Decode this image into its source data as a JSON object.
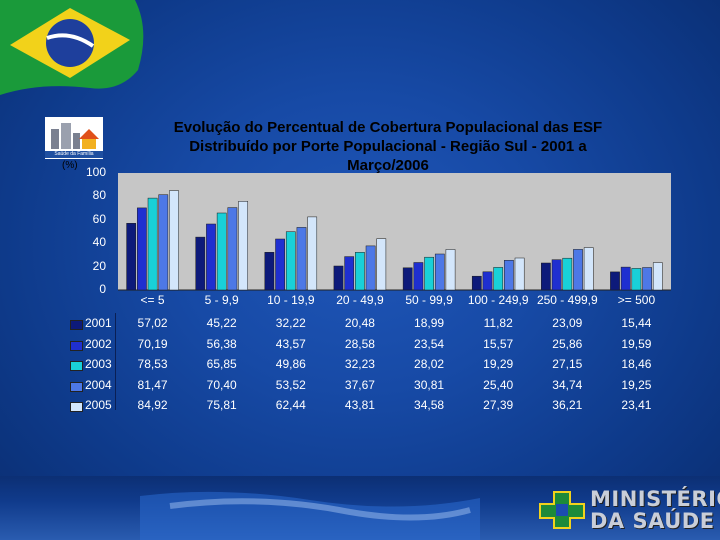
{
  "title_lines": [
    "Evolução do Percentual de Cobertura Populacional das ESF",
    "Distribuído por Porte Populacional - Região Sul - 2001 a",
    "Março/2006"
  ],
  "logo_caption": "Saúde da Família",
  "ministry": {
    "line1": "MINISTÉRIO",
    "line2": "DA SAÚDE"
  },
  "chart_data": {
    "type": "bar",
    "title": "Evolução do Percentual de Cobertura Populacional das ESF Distribuído por Porte Populacional - Região Sul - 2001 a Março/2006",
    "ylabel": "(%)",
    "ylim": [
      0,
      100
    ],
    "yticks": [
      "0",
      "20",
      "40",
      "60",
      "80",
      "100"
    ],
    "grid": false,
    "legend": "table-left",
    "categories": [
      "<= 5",
      "5 - 9,9",
      "10 - 19,9",
      "20 - 49,9",
      "50 - 99,9",
      "100 - 249,9",
      "250 - 499,9",
      ">= 500"
    ],
    "series": [
      {
        "name": "2001",
        "color": "#0d1a7a",
        "values": [
          57.02,
          45.22,
          32.22,
          20.48,
          18.99,
          11.82,
          23.09,
          15.44
        ],
        "labels": [
          "57,02",
          "45,22",
          "32,22",
          "20,48",
          "18,99",
          "11,82",
          "23,09",
          "15,44"
        ]
      },
      {
        "name": "2002",
        "color": "#1f2fd0",
        "values": [
          70.19,
          56.38,
          43.57,
          28.58,
          23.54,
          15.57,
          25.86,
          19.59
        ],
        "labels": [
          "70,19",
          "56,38",
          "43,57",
          "28,58",
          "23,54",
          "15,57",
          "25,86",
          "19,59"
        ]
      },
      {
        "name": "2003",
        "color": "#19d0d8",
        "values": [
          78.53,
          65.85,
          49.86,
          32.23,
          28.02,
          19.29,
          27.15,
          18.46
        ],
        "labels": [
          "78,53",
          "65,85",
          "49,86",
          "32,23",
          "28,02",
          "19,29",
          "27,15",
          "18,46"
        ]
      },
      {
        "name": "2004",
        "color": "#4d78e6",
        "values": [
          81.47,
          70.4,
          53.52,
          37.67,
          30.81,
          25.4,
          34.74,
          19.25
        ],
        "labels": [
          "81,47",
          "70,40",
          "53,52",
          "37,67",
          "30,81",
          "25,40",
          "34,74",
          "19,25"
        ]
      },
      {
        "name": "2005",
        "color": "#d3e6fb",
        "values": [
          84.92,
          75.81,
          62.44,
          43.81,
          34.58,
          27.39,
          36.21,
          23.41
        ],
        "labels": [
          "84,92",
          "75,81",
          "62,44",
          "43,81",
          "34,58",
          "27,39",
          "36,21",
          "23,41"
        ]
      }
    ]
  }
}
